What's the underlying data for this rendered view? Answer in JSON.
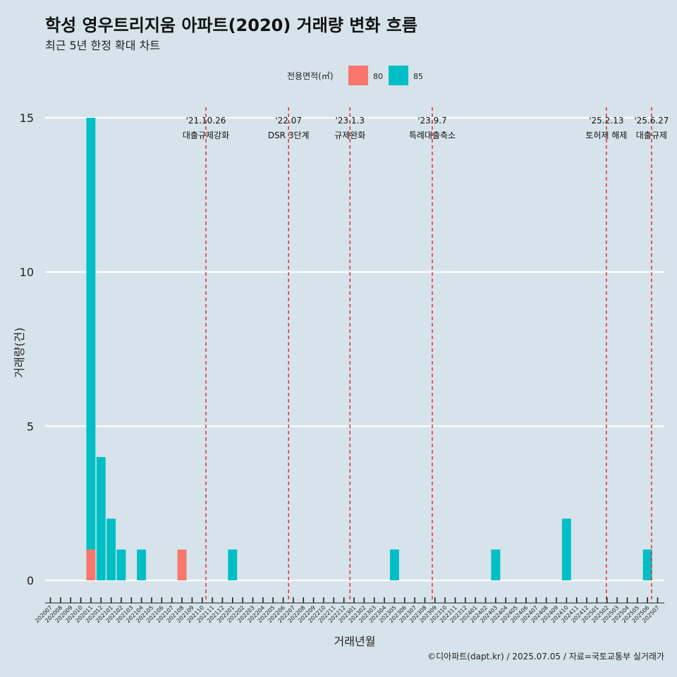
{
  "chart_data": {
    "type": "bar",
    "title": "학성 영우트리지움 아파트(2020) 거래량 변화 흐름",
    "subtitle": "최근 5년 한정 확대 차트",
    "xlabel": "거래년월",
    "ylabel": "거래량(건)",
    "ylim": [
      0,
      15
    ],
    "yticks": [
      "0",
      "5",
      "10",
      "15"
    ],
    "legend": {
      "title": "전용면적(㎡)",
      "position": "top"
    },
    "categories": [
      "202007",
      "202008",
      "202009",
      "202010",
      "202011",
      "202012",
      "202101",
      "202102",
      "202103",
      "202104",
      "202105",
      "202106",
      "202107",
      "202108",
      "202109",
      "202110",
      "202111",
      "202112",
      "202201",
      "202202",
      "202203",
      "202204",
      "202205",
      "202206",
      "202207",
      "202208",
      "202209",
      "202210",
      "202211",
      "202212",
      "202301",
      "202302",
      "202303",
      "202304",
      "202305",
      "202306",
      "202307",
      "202308",
      "202309",
      "202310",
      "202311",
      "202312",
      "202401",
      "202402",
      "202403",
      "202404",
      "202405",
      "202406",
      "202407",
      "202408",
      "202409",
      "202410",
      "202411",
      "202412",
      "202501",
      "202502",
      "202503",
      "202504",
      "202505",
      "202506",
      "202507"
    ],
    "series": [
      {
        "name": "80",
        "color": "#f8766d",
        "points": [
          {
            "x": "202011",
            "y": 1
          },
          {
            "x": "202108",
            "y": 1
          }
        ]
      },
      {
        "name": "85",
        "color": "#00bfc4",
        "points": [
          {
            "x": "202011",
            "y": 14
          },
          {
            "x": "202012",
            "y": 4
          },
          {
            "x": "202101",
            "y": 2
          },
          {
            "x": "202102",
            "y": 1
          },
          {
            "x": "202104",
            "y": 1
          },
          {
            "x": "202201",
            "y": 1
          },
          {
            "x": "202305",
            "y": 1
          },
          {
            "x": "202403",
            "y": 1
          },
          {
            "x": "202410",
            "y": 2
          },
          {
            "x": "202506",
            "y": 1
          }
        ]
      }
    ],
    "annotations": [
      {
        "date": "'21.10.26",
        "label": "대출규제강화",
        "x": "202110",
        "day": 26
      },
      {
        "date": "'22.07",
        "label": "DSR 3단계",
        "x": "202207",
        "day": 1
      },
      {
        "date": "'23.1.3",
        "label": "규제완화",
        "x": "202301",
        "day": 3
      },
      {
        "date": "'23.9.7",
        "label": "특례대출축소",
        "x": "202309",
        "day": 7
      },
      {
        "date": "'25.2.13",
        "label": "토허제 해제",
        "x": "202502",
        "day": 13
      },
      {
        "date": "'25.6.27",
        "label": "대출규제",
        "x": "202506",
        "day": 27
      }
    ],
    "caption": "©디아파트(dapt.kr) / 2025.07.05 / 자료=국토교통부 실거래가",
    "grid": true
  }
}
